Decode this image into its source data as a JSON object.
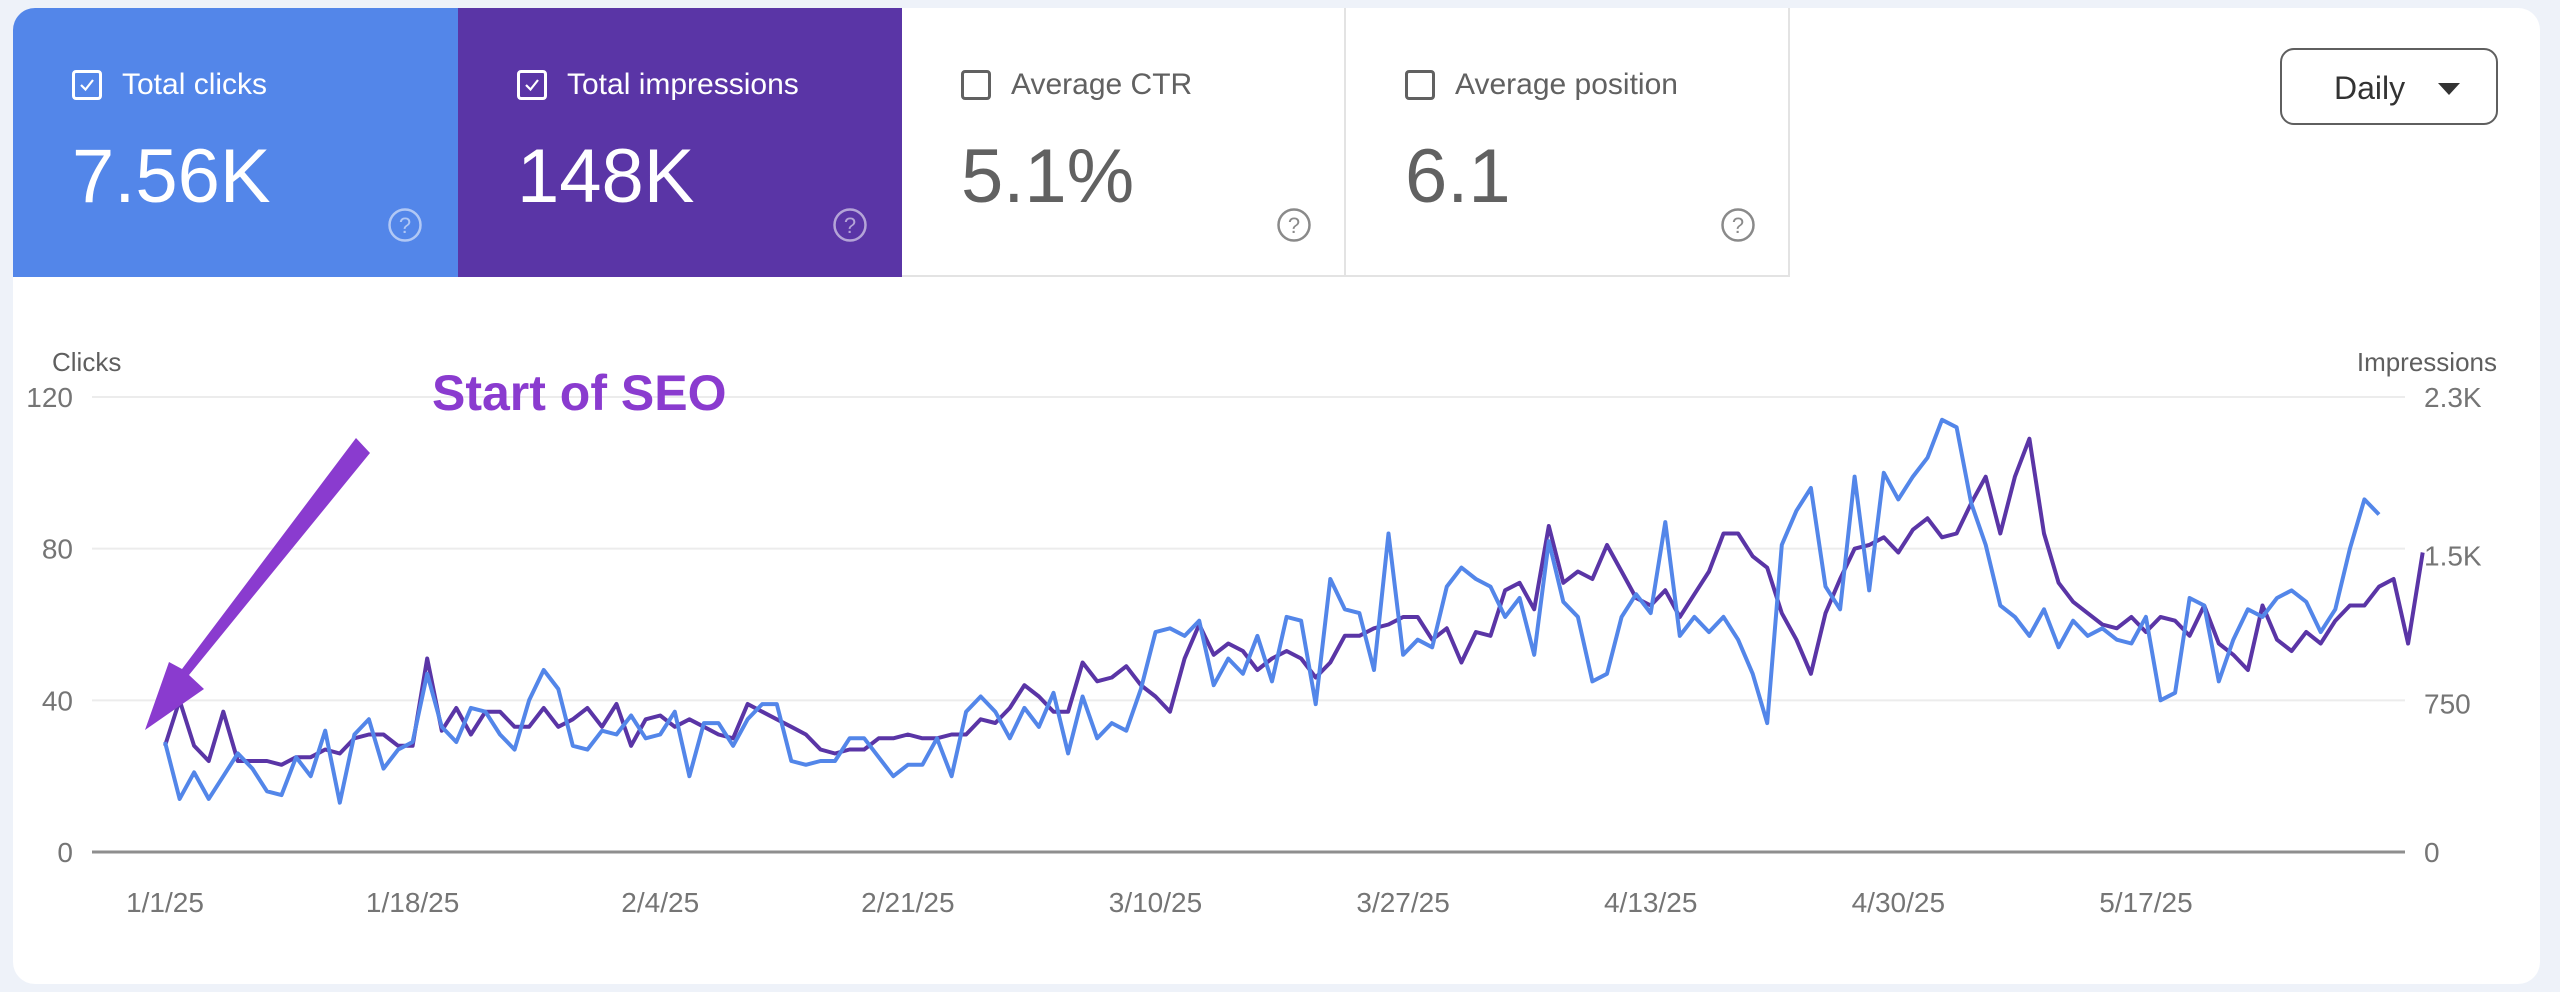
{
  "metric_cards": [
    {
      "label": "Total clicks",
      "value": "7.56K",
      "checked": true,
      "color": "#5386e9"
    },
    {
      "label": "Total impressions",
      "value": "148K",
      "checked": true,
      "color": "#5a35a6"
    },
    {
      "label": "Average CTR",
      "value": "5.1%",
      "checked": false,
      "color": "#ffffff"
    },
    {
      "label": "Average position",
      "value": "6.1",
      "checked": false,
      "color": "#ffffff"
    }
  ],
  "icons": {
    "checkbox": "checkbox-icon",
    "help": "help-circle-icon",
    "dropdown": "caret-down-icon"
  },
  "granularity": {
    "selected": "Daily"
  },
  "chart_data": {
    "type": "line",
    "title": "",
    "annotation": {
      "text": "Start of SEO",
      "points_to_x_index": 2,
      "color": "#8a3bcf"
    },
    "y_left": {
      "label": "Clicks",
      "ticks": [
        "0",
        "40",
        "80",
        "120"
      ],
      "tick_values": [
        0,
        40,
        80,
        120
      ],
      "range": [
        0,
        120
      ]
    },
    "y_right": {
      "label": "Impressions",
      "ticks": [
        "0",
        "750",
        "1.5K",
        "2.3K"
      ],
      "tick_values": [
        0,
        750,
        1500,
        2300
      ],
      "range": [
        0,
        2300
      ]
    },
    "x_ticks": [
      "1/1/25",
      "1/18/25",
      "2/4/25",
      "2/21/25",
      "3/10/25",
      "3/27/25",
      "4/13/25",
      "4/30/25",
      "5/17/25"
    ],
    "x_tick_every": 17,
    "grid": true,
    "series": [
      {
        "name": "Clicks",
        "axis": "left",
        "color": "#5386e9",
        "values": [
          29,
          14,
          21,
          14,
          20,
          26,
          22,
          16,
          15,
          25,
          20,
          32,
          13,
          31,
          35,
          22,
          27,
          29,
          47,
          33,
          29,
          38,
          37,
          31,
          27,
          40,
          48,
          43,
          28,
          27,
          32,
          31,
          36,
          30,
          31,
          37,
          20,
          34,
          34,
          28,
          35,
          39,
          39,
          24,
          23,
          24,
          24,
          30,
          30,
          25,
          20,
          23,
          23,
          30,
          20,
          37,
          41,
          37,
          30,
          38,
          33,
          42,
          26,
          41,
          30,
          34,
          32,
          43,
          58,
          59,
          57,
          61,
          44,
          51,
          47,
          57,
          45,
          62,
          61,
          39,
          72,
          64,
          63,
          48,
          84,
          52,
          56,
          54,
          70,
          75,
          72,
          70,
          62,
          67,
          52,
          82,
          66,
          62,
          45,
          47,
          62,
          68,
          63,
          87,
          57,
          62,
          58,
          62,
          56,
          47,
          34,
          81,
          90,
          96,
          70,
          64,
          99,
          69,
          100,
          93,
          99,
          104,
          114,
          112,
          92,
          81,
          65,
          62,
          57,
          64,
          54,
          61,
          57,
          59,
          56,
          55,
          62,
          40,
          42,
          67,
          65,
          45,
          56,
          64,
          62,
          67,
          69,
          66,
          58,
          64,
          80,
          93,
          89
        ]
      },
      {
        "name": "Impressions",
        "axis": "right",
        "color": "#5a35a6",
        "values": [
          537,
          767,
          537,
          460,
          709,
          460,
          460,
          460,
          441,
          479,
          479,
          518,
          498,
          575,
          594,
          594,
          537,
          537,
          978,
          613,
          728,
          594,
          709,
          709,
          633,
          633,
          728,
          633,
          671,
          728,
          633,
          748,
          537,
          671,
          690,
          633,
          671,
          633,
          594,
          575,
          748,
          709,
          671,
          633,
          594,
          518,
          498,
          518,
          518,
          575,
          575,
          594,
          575,
          575,
          594,
          594,
          671,
          652,
          728,
          843,
          786,
          709,
          709,
          958,
          863,
          882,
          939,
          843,
          786,
          709,
          978,
          1150,
          997,
          1054,
          1016,
          920,
          978,
          1016,
          978,
          882,
          958,
          1093,
          1093,
          1131,
          1150,
          1188,
          1188,
          1073,
          1131,
          958,
          1112,
          1093,
          1323,
          1361,
          1227,
          1648,
          1361,
          1418,
          1380,
          1552,
          1418,
          1284,
          1246,
          1323,
          1188,
          1303,
          1418,
          1610,
          1610,
          1495,
          1437,
          1207,
          1073,
          901,
          1207,
          1380,
          1533,
          1552,
          1591,
          1514,
          1629,
          1687,
          1591,
          1610,
          1763,
          1897,
          1610,
          1897,
          2089,
          1610,
          1361,
          1265,
          1207,
          1150,
          1131,
          1188,
          1112,
          1188,
          1169,
          1093,
          1246,
          1054,
          997,
          920,
          1246,
          1073,
          1016,
          1112,
          1054,
          1169,
          1246,
          1246,
          1341,
          1380,
          1054,
          1514
        ]
      }
    ]
  }
}
